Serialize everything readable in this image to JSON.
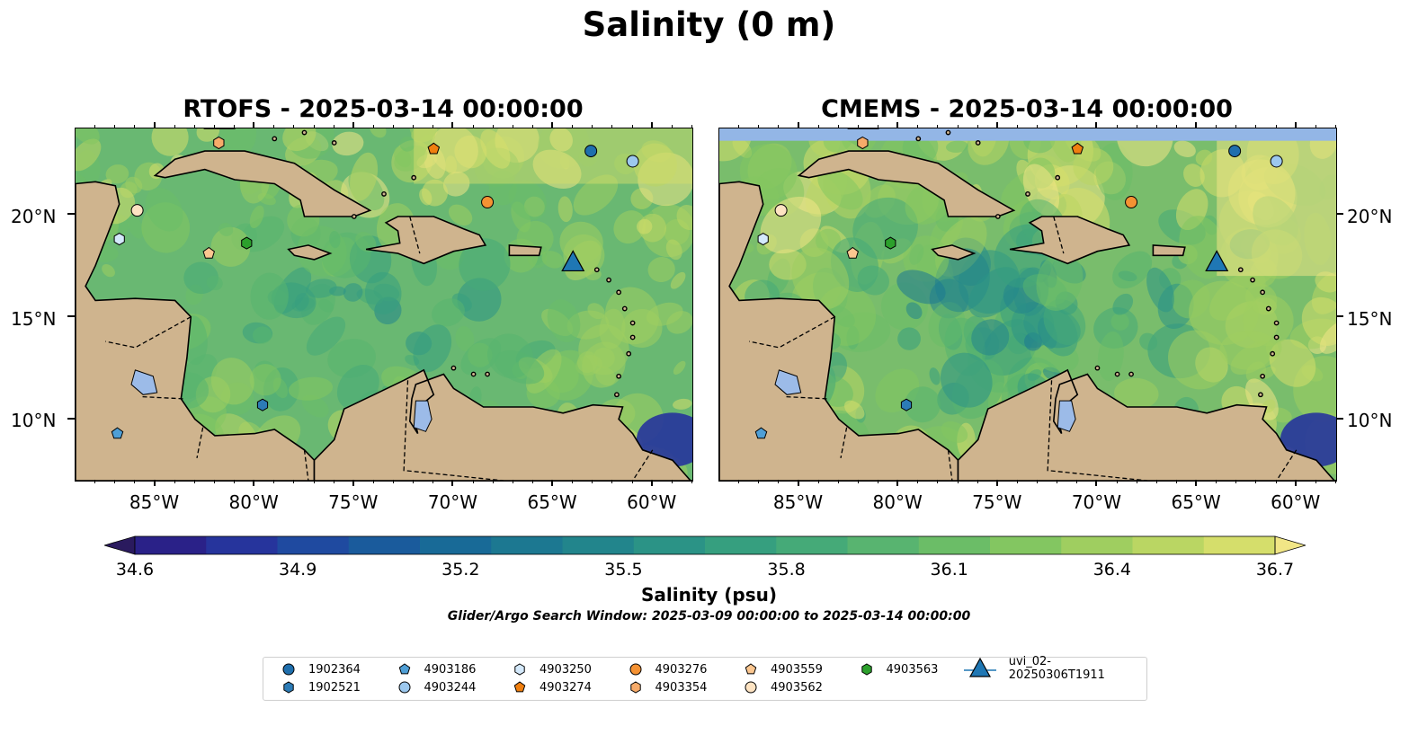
{
  "suptitle": "Salinity (0 m)",
  "panels": [
    {
      "title": "RTOFS - 2025-03-14 00:00:00",
      "y_ticks": [
        "20°N",
        "15°N",
        "10°N"
      ],
      "y_side": "left"
    },
    {
      "title": "CMEMS - 2025-03-14 00:00:00",
      "y_ticks": [
        "20°N",
        "15°N",
        "10°N"
      ],
      "y_side": "right"
    }
  ],
  "x_ticks": [
    "85°W",
    "80°W",
    "75°W",
    "70°W",
    "65°W",
    "60°W"
  ],
  "colorbar": {
    "label": "Salinity (psu)",
    "ticks": [
      "34.6",
      "34.9",
      "35.2",
      "35.5",
      "35.8",
      "36.1",
      "36.4",
      "36.7"
    ],
    "colors": [
      "#2a1a5e",
      "#2a2188",
      "#26349c",
      "#1f4aa0",
      "#1a5b9c",
      "#186a97",
      "#1c7891",
      "#22858c",
      "#2b9386",
      "#369f7f",
      "#45aa78",
      "#58b470",
      "#6bbd67",
      "#83c661",
      "#9fce60",
      "#bad663",
      "#d5de6b",
      "#f1e686"
    ],
    "extend": "both"
  },
  "window_text": "Glider/Argo Search Window: 2025-03-09 00:00:00 to 2025-03-14 00:00:00",
  "legend": [
    {
      "label": "1902364",
      "marker": "circle",
      "color": "#1f6fad"
    },
    {
      "label": "1902521",
      "marker": "hexagon",
      "color": "#2c7bb6"
    },
    {
      "label": "4903186",
      "marker": "pentagon",
      "color": "#4f9fd6"
    },
    {
      "label": "4903244",
      "marker": "circle",
      "color": "#9cc8ee"
    },
    {
      "label": "4903250",
      "marker": "hexagon",
      "color": "#d4e9fb"
    },
    {
      "label": "4903274",
      "marker": "pentagon",
      "color": "#f07f0f"
    },
    {
      "label": "4903276",
      "marker": "circle",
      "color": "#f59233"
    },
    {
      "label": "4903354",
      "marker": "hexagon",
      "color": "#f7ab6a"
    },
    {
      "label": "4903559",
      "marker": "pentagon",
      "color": "#fcc790"
    },
    {
      "label": "4903562",
      "marker": "circle",
      "color": "#fde3c2"
    },
    {
      "label": "4903563",
      "marker": "hexagon",
      "color": "#2ca02c"
    },
    {
      "label": "uvi_02-20250306T1911",
      "marker": "triangle",
      "color": "#1f77b4"
    }
  ],
  "chart_data": {
    "type": "heatmap",
    "variable": "Salinity",
    "units": "psu",
    "depth": "0 m",
    "vmin": 34.6,
    "vmax": 36.7,
    "xlim": [
      -89,
      -58
    ],
    "ylim": [
      7,
      24.2
    ],
    "markers": [
      {
        "id": "1902364",
        "lon": -63.1,
        "lat": 23.1
      },
      {
        "id": "4903244",
        "lon": -61.0,
        "lat": 22.6
      },
      {
        "id": "4903274",
        "lon": -71.0,
        "lat": 23.2
      },
      {
        "id": "4903354",
        "lon": -81.8,
        "lat": 23.5
      },
      {
        "id": "4903276",
        "lon": -68.3,
        "lat": 20.6
      },
      {
        "id": "4903562",
        "lon": -85.9,
        "lat": 20.2
      },
      {
        "id": "4903250",
        "lon": -86.8,
        "lat": 18.8
      },
      {
        "id": "4903563",
        "lon": -80.4,
        "lat": 18.6
      },
      {
        "id": "4903559",
        "lon": -82.3,
        "lat": 18.1
      },
      {
        "id": "1902521",
        "lon": -79.6,
        "lat": 10.7
      },
      {
        "id": "4903186",
        "lon": -86.9,
        "lat": 9.3
      },
      {
        "id": "uvi_02-20250306T1911",
        "lon": -64.0,
        "lat": 17.6
      }
    ]
  }
}
